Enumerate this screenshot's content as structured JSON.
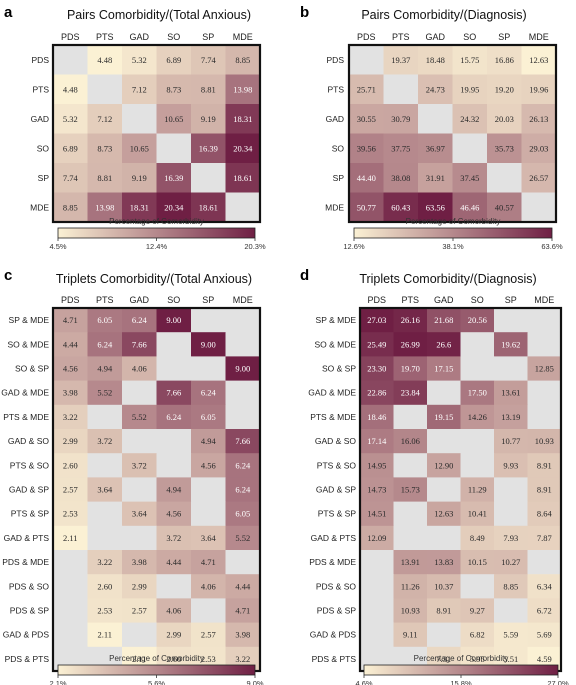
{
  "colors": {
    "low": "#fbf1d4",
    "high": "#6f1f44",
    "empty": "#e2e2e2"
  },
  "chart_data": [
    {
      "type": "heatmap",
      "panel": "a",
      "title": "Pairs Comorbidity/(Total Anxious)",
      "columns": [
        "PDS",
        "PTS",
        "GAD",
        "SO",
        "SP",
        "MDE"
      ],
      "rows": [
        "PDS",
        "PTS",
        "GAD",
        "SO",
        "SP",
        "MDE"
      ],
      "values": [
        [
          null,
          4.48,
          5.32,
          6.89,
          7.74,
          8.85
        ],
        [
          4.48,
          null,
          7.12,
          8.73,
          8.81,
          13.98
        ],
        [
          5.32,
          7.12,
          null,
          10.65,
          9.19,
          18.31
        ],
        [
          6.89,
          8.73,
          10.65,
          null,
          16.39,
          20.34
        ],
        [
          7.74,
          8.81,
          9.19,
          16.39,
          null,
          18.61
        ],
        [
          8.85,
          13.98,
          18.31,
          20.34,
          18.61,
          null
        ]
      ],
      "colorbar": {
        "label": "Percentage of Comorbidity",
        "min": 4.5,
        "max": 20.3,
        "ticks": [
          "4.5%",
          "12.4%",
          "20.3%"
        ]
      }
    },
    {
      "type": "heatmap",
      "panel": "b",
      "title": "Pairs Comorbidity/(Diagnosis)",
      "columns": [
        "PDS",
        "PTS",
        "GAD",
        "SO",
        "SP",
        "MDE"
      ],
      "rows": [
        "PDS",
        "PTS",
        "GAD",
        "SO",
        "SP",
        "MDE"
      ],
      "values": [
        [
          null,
          19.37,
          18.48,
          15.75,
          16.86,
          12.63
        ],
        [
          25.71,
          null,
          24.73,
          19.95,
          19.2,
          19.96
        ],
        [
          30.55,
          30.79,
          null,
          24.32,
          20.03,
          26.13
        ],
        [
          39.56,
          37.75,
          36.97,
          null,
          35.73,
          29.03
        ],
        [
          44.4,
          38.08,
          31.91,
          37.45,
          null,
          26.57
        ],
        [
          50.77,
          60.43,
          63.56,
          46.46,
          40.57,
          null
        ]
      ],
      "colorbar": {
        "label": "Percentage of Comorbidity",
        "min": 12.6,
        "max": 63.6,
        "ticks": [
          "12.6%",
          "38.1%",
          "63.6%"
        ]
      }
    },
    {
      "type": "heatmap",
      "panel": "c",
      "title": "Triplets Comorbidity/(Total Anxious)",
      "columns": [
        "PDS",
        "PTS",
        "GAD",
        "SO",
        "SP",
        "MDE"
      ],
      "rows": [
        "SP & MDE",
        "SO & MDE",
        "SO & SP",
        "GAD & MDE",
        "PTS & MDE",
        "GAD & SO",
        "PTS & SO",
        "GAD & SP",
        "PTS & SP",
        "GAD & PTS",
        "PDS & MDE",
        "PDS & SO",
        "PDS & SP",
        "GAD & PDS",
        "PDS & PTS"
      ],
      "values": [
        [
          4.71,
          6.05,
          6.24,
          9.0,
          null,
          null
        ],
        [
          4.44,
          6.24,
          7.66,
          null,
          9.0,
          null
        ],
        [
          4.56,
          4.94,
          4.06,
          null,
          null,
          9.0
        ],
        [
          3.98,
          5.52,
          null,
          7.66,
          6.24,
          null
        ],
        [
          3.22,
          null,
          5.52,
          6.24,
          6.05,
          null
        ],
        [
          2.99,
          3.72,
          null,
          null,
          4.94,
          7.66
        ],
        [
          2.6,
          null,
          3.72,
          null,
          4.56,
          6.24
        ],
        [
          2.57,
          3.64,
          null,
          4.94,
          null,
          6.24
        ],
        [
          2.53,
          null,
          3.64,
          4.56,
          null,
          6.05
        ],
        [
          2.11,
          null,
          null,
          3.72,
          3.64,
          5.52
        ],
        [
          null,
          3.22,
          3.98,
          4.44,
          4.71,
          null
        ],
        [
          null,
          2.6,
          2.99,
          null,
          4.06,
          4.44
        ],
        [
          null,
          2.53,
          2.57,
          4.06,
          null,
          4.71
        ],
        [
          null,
          2.11,
          null,
          2.99,
          2.57,
          3.98
        ],
        [
          null,
          null,
          2.11,
          2.6,
          2.53,
          3.22
        ]
      ],
      "colorbar": {
        "label": "Percentage of Comorbidity",
        "min": 2.1,
        "max": 9.0,
        "ticks": [
          "2.1%",
          "5.6%",
          "9.0%"
        ]
      }
    },
    {
      "type": "heatmap",
      "panel": "d",
      "title": "Triplets Comorbidity/(Diagnosis)",
      "columns": [
        "PDS",
        "PTS",
        "GAD",
        "SO",
        "SP",
        "MDE"
      ],
      "rows": [
        "SP & MDE",
        "SO & MDE",
        "SO & SP",
        "GAD & MDE",
        "PTS & MDE",
        "GAD & SO",
        "PTS & SO",
        "GAD & SP",
        "PTS & SP",
        "GAD & PTS",
        "PDS & MDE",
        "PDS & SO",
        "PDS & SP",
        "GAD & PDS",
        "PDS & PTS"
      ],
      "values": [
        [
          27.03,
          26.16,
          21.68,
          20.56,
          null,
          null
        ],
        [
          25.49,
          26.99,
          26.6,
          null,
          19.62,
          null
        ],
        [
          23.3,
          19.7,
          17.15,
          null,
          null,
          12.85
        ],
        [
          22.86,
          23.84,
          null,
          17.5,
          13.61,
          null
        ],
        [
          18.46,
          null,
          19.15,
          14.26,
          13.19,
          null
        ],
        [
          17.14,
          16.06,
          null,
          null,
          10.77,
          10.93
        ],
        [
          14.95,
          null,
          12.9,
          null,
          9.93,
          8.91
        ],
        [
          14.73,
          15.73,
          null,
          11.29,
          null,
          8.91
        ],
        [
          14.51,
          null,
          12.63,
          10.41,
          null,
          8.64
        ],
        [
          12.09,
          null,
          null,
          8.49,
          7.93,
          7.87
        ],
        [
          null,
          13.91,
          13.83,
          10.15,
          10.27,
          null
        ],
        [
          null,
          11.26,
          10.37,
          null,
          8.85,
          6.34
        ],
        [
          null,
          10.93,
          8.91,
          9.27,
          null,
          6.72
        ],
        [
          null,
          9.11,
          null,
          6.82,
          5.59,
          5.69
        ],
        [
          null,
          null,
          7.31,
          5.95,
          5.51,
          4.59
        ]
      ],
      "colorbar": {
        "label": "Percentage of Comorbidity",
        "min": 4.6,
        "max": 27.0,
        "ticks": [
          "4.6%",
          "15.8%",
          "27.0%"
        ]
      }
    }
  ]
}
